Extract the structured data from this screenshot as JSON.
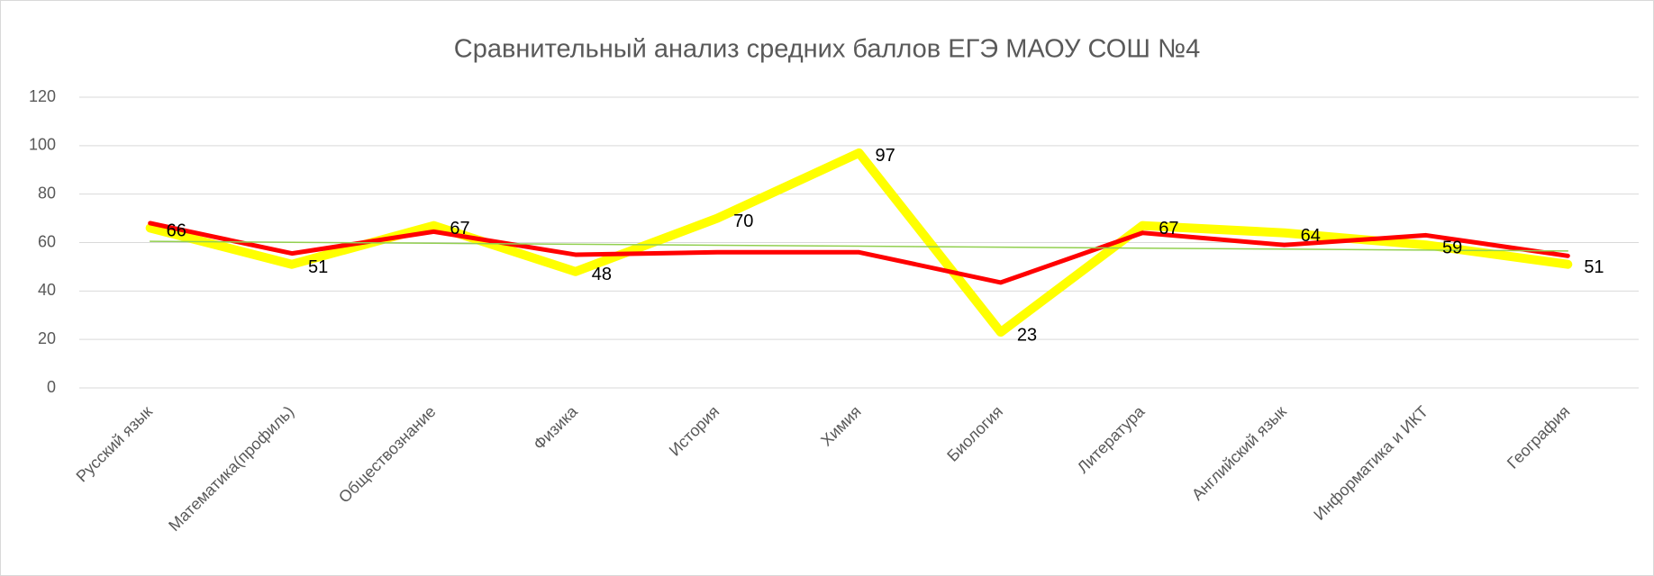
{
  "chart_data": {
    "type": "line",
    "title": "Сравнительный анализ средних баллов ЕГЭ МАОУ СОШ №4",
    "categories": [
      "Русский язык",
      "Математика(профиль)",
      "Обществознание",
      "Физика",
      "История",
      "Химия",
      "Биология",
      "Литература",
      "Английский язык",
      "Информатика и ИКТ",
      "География"
    ],
    "series": [
      {
        "color": "#ffff00",
        "width": 10,
        "labels": true,
        "values": [
          66,
          51,
          67,
          48,
          70,
          97,
          23,
          67,
          64,
          59,
          51
        ]
      },
      {
        "color": "#ff0000",
        "width": 5,
        "labels": false,
        "values": [
          68,
          55.5,
          64.5,
          55,
          56,
          56,
          43.5,
          64,
          59,
          63,
          54.5
        ]
      },
      {
        "color": "#92d050",
        "width": 1.5,
        "labels": false,
        "values": [
          60.5,
          60.1,
          59.7,
          59.3,
          58.9,
          58.5,
          58.1,
          57.7,
          57.3,
          56.9,
          56.5
        ]
      }
    ],
    "ylim": [
      0,
      120
    ],
    "yticks": [
      0,
      20,
      40,
      60,
      80,
      100,
      120
    ],
    "grid": true
  }
}
